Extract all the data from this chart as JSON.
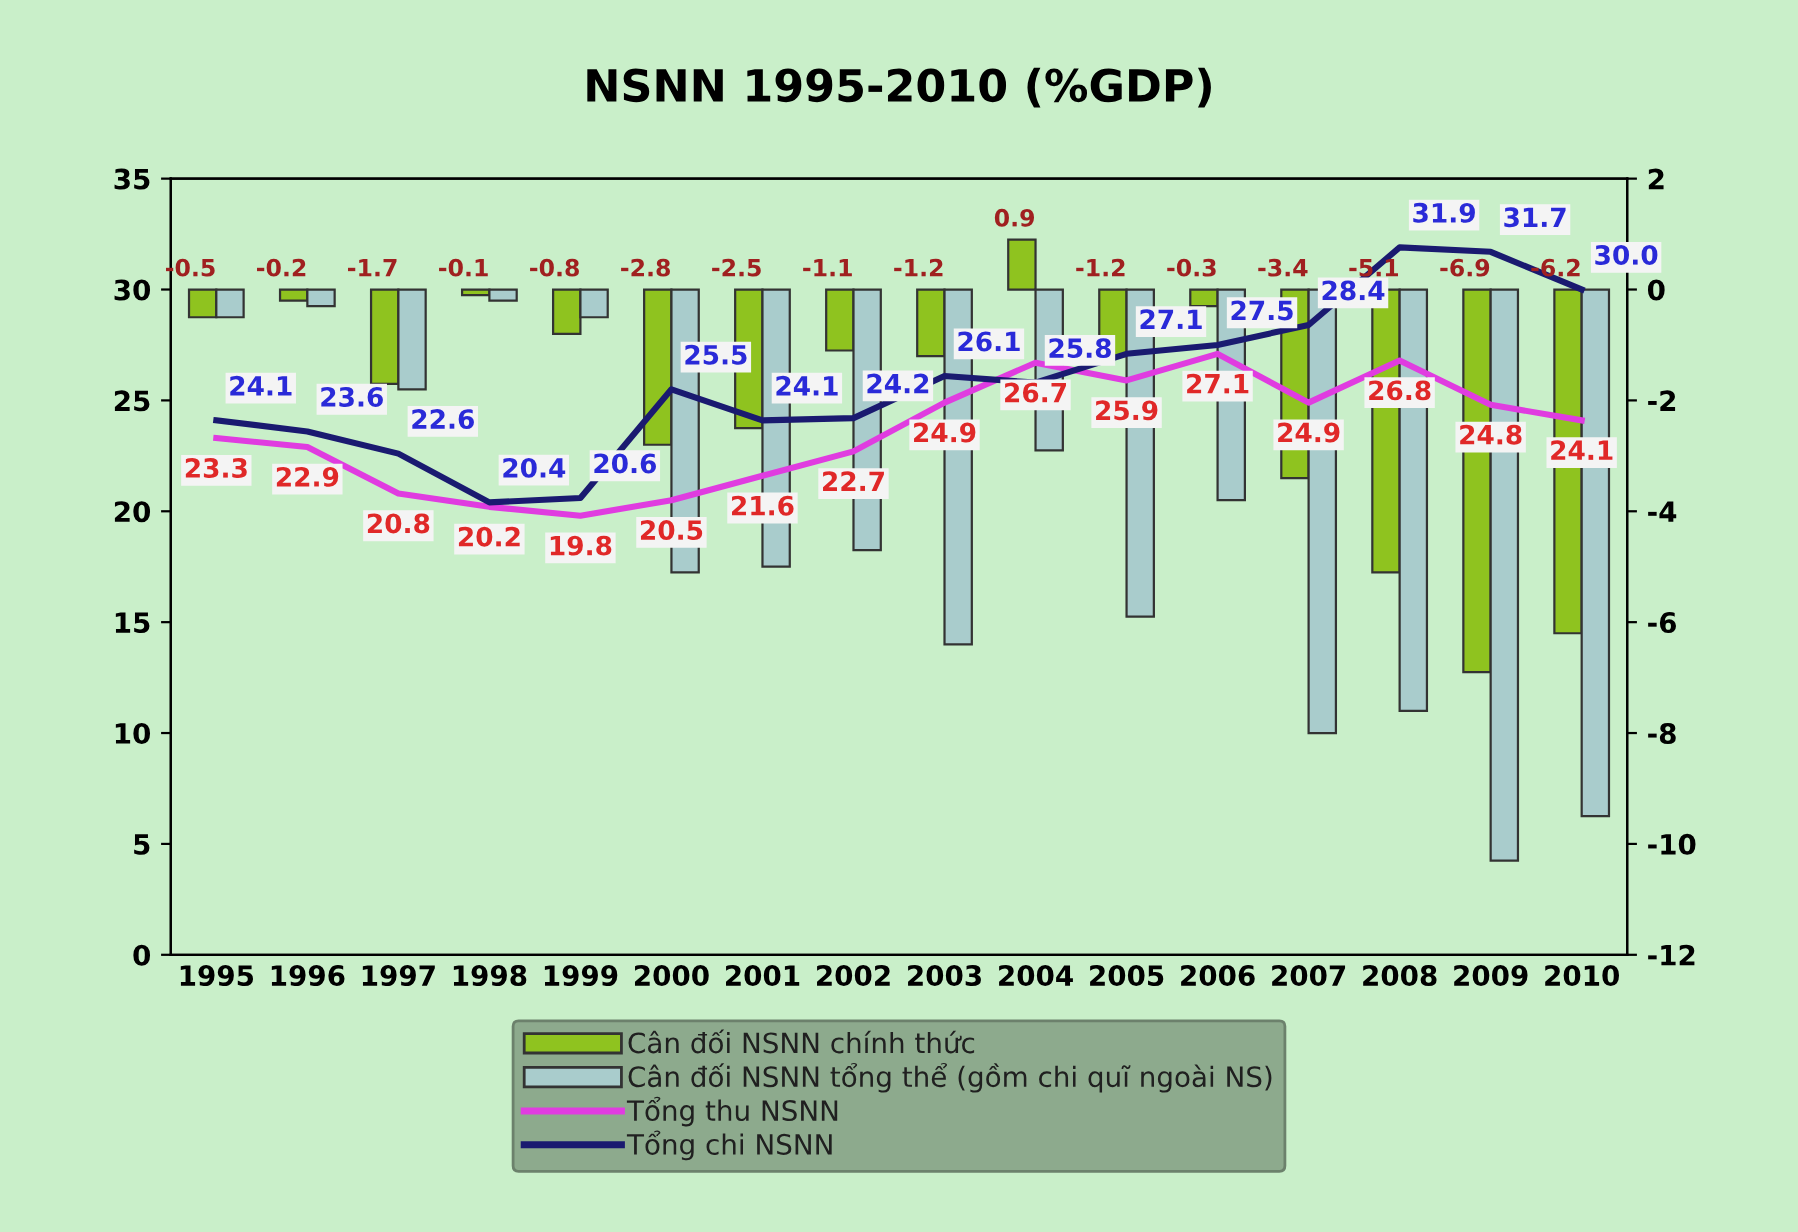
{
  "chart_data": {
    "type": "bar",
    "title": "NSNN 1995-2010 (%GDP)",
    "categories": [
      "1995",
      "1996",
      "1997",
      "1998",
      "1999",
      "2000",
      "2001",
      "2002",
      "2003",
      "2004",
      "2005",
      "2006",
      "2007",
      "2008",
      "2009",
      "2010"
    ],
    "series": [
      {
        "name": "Cân đối NSNN chính thức",
        "type": "bar",
        "axis": "y2",
        "color": "#8fc31f",
        "values": [
          -0.5,
          -0.2,
          -1.7,
          -0.1,
          -0.8,
          -2.8,
          -2.5,
          -1.1,
          -1.2,
          0.9,
          -1.2,
          -0.3,
          -3.4,
          -5.1,
          -6.9,
          -6.2
        ],
        "value_labels": [
          "-0.5",
          "-0.2",
          "-1.7",
          "-0.1",
          "-0.8",
          "-2.8",
          "-2.5",
          "-1.1",
          "-1.2",
          "0.9",
          "-1.2",
          "-0.3",
          "-3.4",
          "-5.1",
          "-6.9",
          "-6.2"
        ]
      },
      {
        "name": "Cân đối NSNN tổng thể (gồm chi quĩ ngoài NS)",
        "type": "bar",
        "axis": "y2",
        "color": "#a9cccc",
        "values": [
          -0.5,
          -0.3,
          -1.8,
          -0.2,
          -0.5,
          -5.1,
          -5.0,
          -4.7,
          -6.4,
          -2.9,
          -5.9,
          -3.8,
          -8.0,
          -7.6,
          -10.3,
          -9.5
        ]
      },
      {
        "name": "Tổng thu NSNN",
        "type": "line",
        "color": "#e03ce0",
        "values": [
          23.3,
          22.9,
          20.8,
          20.2,
          19.8,
          20.5,
          21.6,
          22.7,
          24.9,
          26.7,
          25.9,
          27.1,
          24.9,
          26.8,
          24.8,
          24.1
        ],
        "value_labels": [
          "23.3",
          "22.9",
          "20.8",
          "20.2",
          "19.8",
          "20.5",
          "21.6",
          "22.7",
          "24.9",
          "26.7",
          "25.9",
          "27.1",
          "24.9",
          "26.8",
          "24.8",
          "24.1"
        ]
      },
      {
        "name": "Tổng chi NSNN",
        "type": "line",
        "color": "#1a1a70",
        "values": [
          24.1,
          23.6,
          22.6,
          20.4,
          20.6,
          25.5,
          24.1,
          24.2,
          26.1,
          25.8,
          27.1,
          27.5,
          28.4,
          31.9,
          31.7,
          30.0
        ],
        "value_labels": [
          "24.1",
          "23.6",
          "22.6",
          "20.4",
          "20.6",
          "25.5",
          "24.1",
          "24.2",
          "26.1",
          "25.8",
          "27.1",
          "27.5",
          "28.4",
          "31.9",
          "31.7",
          "30.0"
        ]
      }
    ],
    "ylim": [
      0,
      35
    ],
    "yticks": [
      0,
      5,
      10,
      15,
      20,
      25,
      30,
      35
    ],
    "y2lim": [
      -12,
      2
    ],
    "y2ticks": [
      -12,
      -10,
      -8,
      -6,
      -4,
      -2,
      0,
      2
    ],
    "grid": false,
    "legend": "bottom",
    "line_style": "solid",
    "marker": "none"
  }
}
